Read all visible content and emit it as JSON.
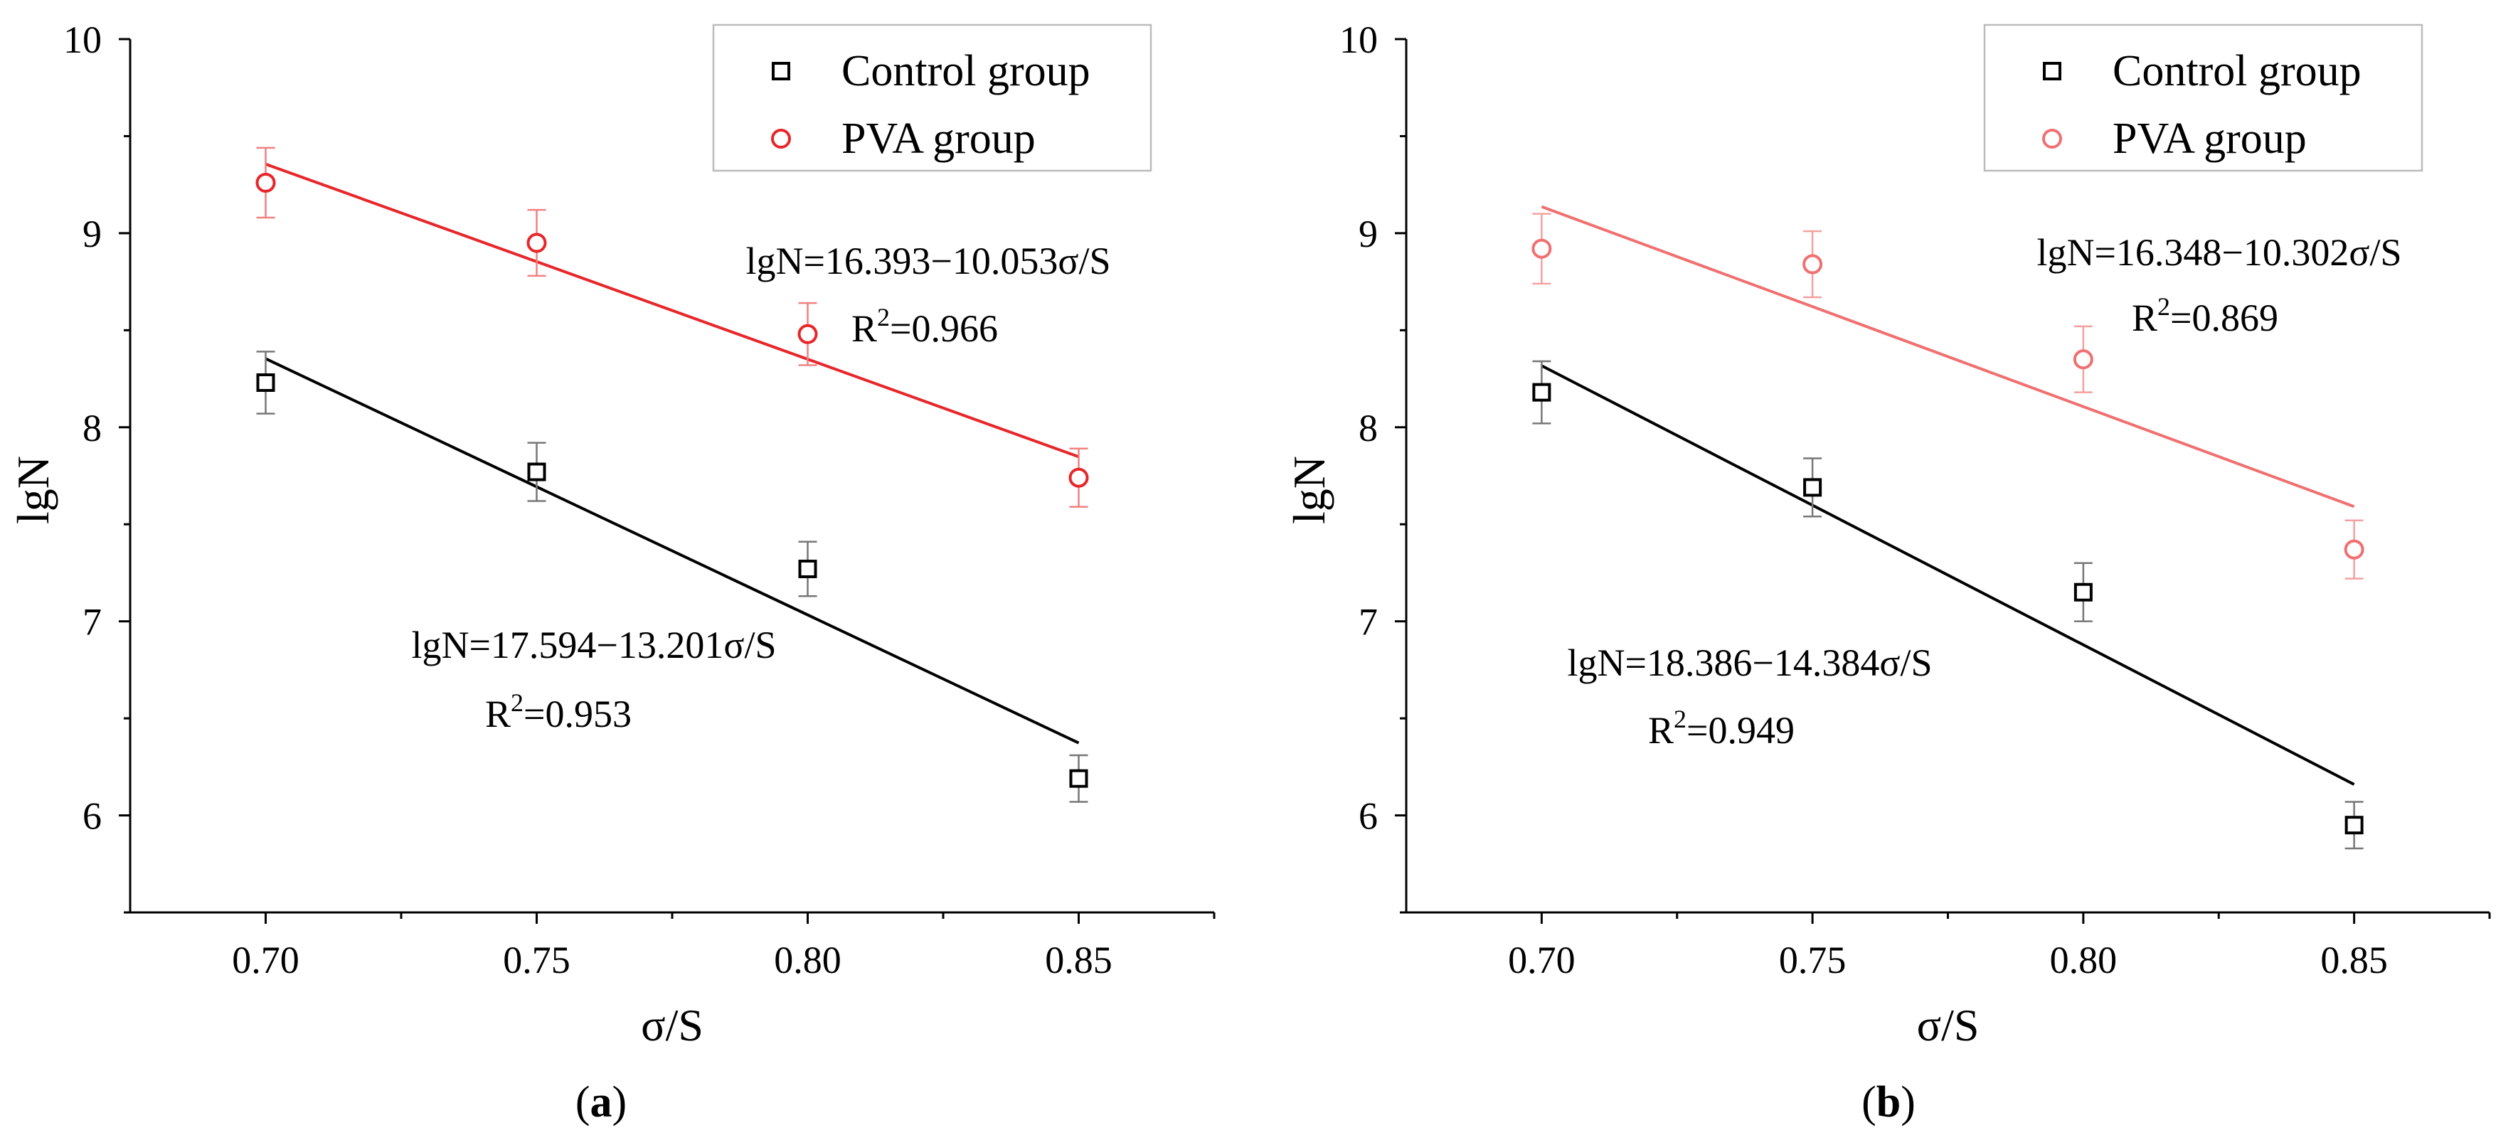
{
  "figure": {
    "panels": [
      {
        "panel_label": "a"
      },
      {
        "panel_label": "b"
      }
    ]
  },
  "chart_data": [
    {
      "type": "scatter",
      "panel": "a",
      "xlabel": "σ/S",
      "ylabel": "lgN",
      "xlim": [
        0.675,
        0.875
      ],
      "ylim": [
        5.5,
        10
      ],
      "xticks": [
        "0.70",
        "0.75",
        "0.80",
        "0.85"
      ],
      "yticks": [
        "6",
        "7",
        "8",
        "9",
        "10"
      ],
      "legend": [
        "Control group",
        "PVA group"
      ],
      "legend_position": "top-right",
      "series": [
        {
          "name": "Control group",
          "color": "#000000",
          "marker": "square",
          "x": [
            0.7,
            0.75,
            0.8,
            0.85
          ],
          "y": [
            8.23,
            7.77,
            7.27,
            6.19
          ],
          "err": [
            0.16,
            0.15,
            0.14,
            0.12
          ],
          "fit": {
            "intercept": 17.594,
            "slope": -13.201
          },
          "equation": "lgN=17.594−13.201σ/S",
          "r2_label": "R",
          "r2_sup": "2",
          "r2_value": "=0.953"
        },
        {
          "name": "PVA group",
          "color": "#e8262a",
          "marker": "circle",
          "x": [
            0.7,
            0.75,
            0.8,
            0.85
          ],
          "y": [
            9.26,
            8.95,
            8.48,
            7.74
          ],
          "err": [
            0.18,
            0.17,
            0.16,
            0.15
          ],
          "fit": {
            "intercept": 16.393,
            "slope": -10.053
          },
          "equation": "lgN=16.393−10.053σ/S",
          "r2_label": "R",
          "r2_sup": "2",
          "r2_value": "=0.966"
        }
      ]
    },
    {
      "type": "scatter",
      "panel": "b",
      "xlabel": "σ/S",
      "ylabel": "lgN",
      "xlim": [
        0.675,
        0.875
      ],
      "ylim": [
        5.5,
        10
      ],
      "xticks": [
        "0.70",
        "0.75",
        "0.80",
        "0.85"
      ],
      "yticks": [
        "6",
        "7",
        "8",
        "9",
        "10"
      ],
      "legend": [
        "Control group",
        "PVA group"
      ],
      "legend_position": "top-right",
      "series": [
        {
          "name": "Control group",
          "color": "#000000",
          "marker": "square",
          "x": [
            0.7,
            0.75,
            0.8,
            0.85
          ],
          "y": [
            8.18,
            7.69,
            7.15,
            5.95
          ],
          "err": [
            0.16,
            0.15,
            0.15,
            0.12
          ],
          "fit": {
            "intercept": 18.386,
            "slope": -14.384
          },
          "equation": "lgN=18.386−14.384σ/S",
          "r2_label": "R",
          "r2_sup": "2",
          "r2_value": "=0.949"
        },
        {
          "name": "PVA group",
          "color": "#f07070",
          "marker": "circle",
          "x": [
            0.7,
            0.75,
            0.8,
            0.85
          ],
          "y": [
            8.92,
            8.84,
            8.35,
            7.37
          ],
          "err": [
            0.18,
            0.17,
            0.17,
            0.15
          ],
          "fit": {
            "intercept": 16.348,
            "slope": -10.302
          },
          "equation": "lgN=16.348−10.302σ/S",
          "r2_label": "R",
          "r2_sup": "2",
          "r2_value": "=0.869"
        }
      ]
    }
  ]
}
